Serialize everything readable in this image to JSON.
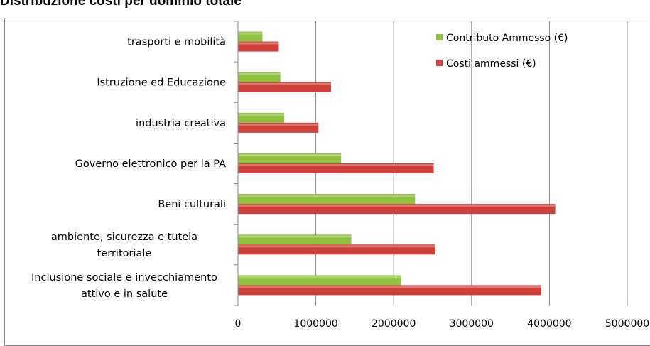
{
  "chart_data": {
    "type": "bar",
    "orientation": "horizontal",
    "title": "Distribuzione costi per dominio totale",
    "categories": [
      "trasporti e mobilità",
      "Istruzione ed Educazione",
      "industria creativa",
      "Governo elettronico per la PA",
      "Beni culturali",
      "ambiente, sicurezza e tutela territoriale",
      "Inclusione sociale e invecchiamento attivo e in salute"
    ],
    "series": [
      {
        "name": "Contributo Ammesso (€)",
        "color": "#8dc13f",
        "values": [
          310000,
          540000,
          590000,
          1320000,
          2270000,
          1450000,
          2090000
        ]
      },
      {
        "name": "Costi ammessi (€)",
        "color": "#d0403a",
        "values": [
          520000,
          1190000,
          1030000,
          2510000,
          4070000,
          2530000,
          3890000
        ]
      }
    ],
    "x_ticks": [
      "0",
      "1000000",
      "2000000",
      "3000000",
      "4000000",
      "5000000"
    ],
    "xlim": [
      0,
      5000000
    ],
    "grid": true,
    "legend_position": "top-right"
  }
}
